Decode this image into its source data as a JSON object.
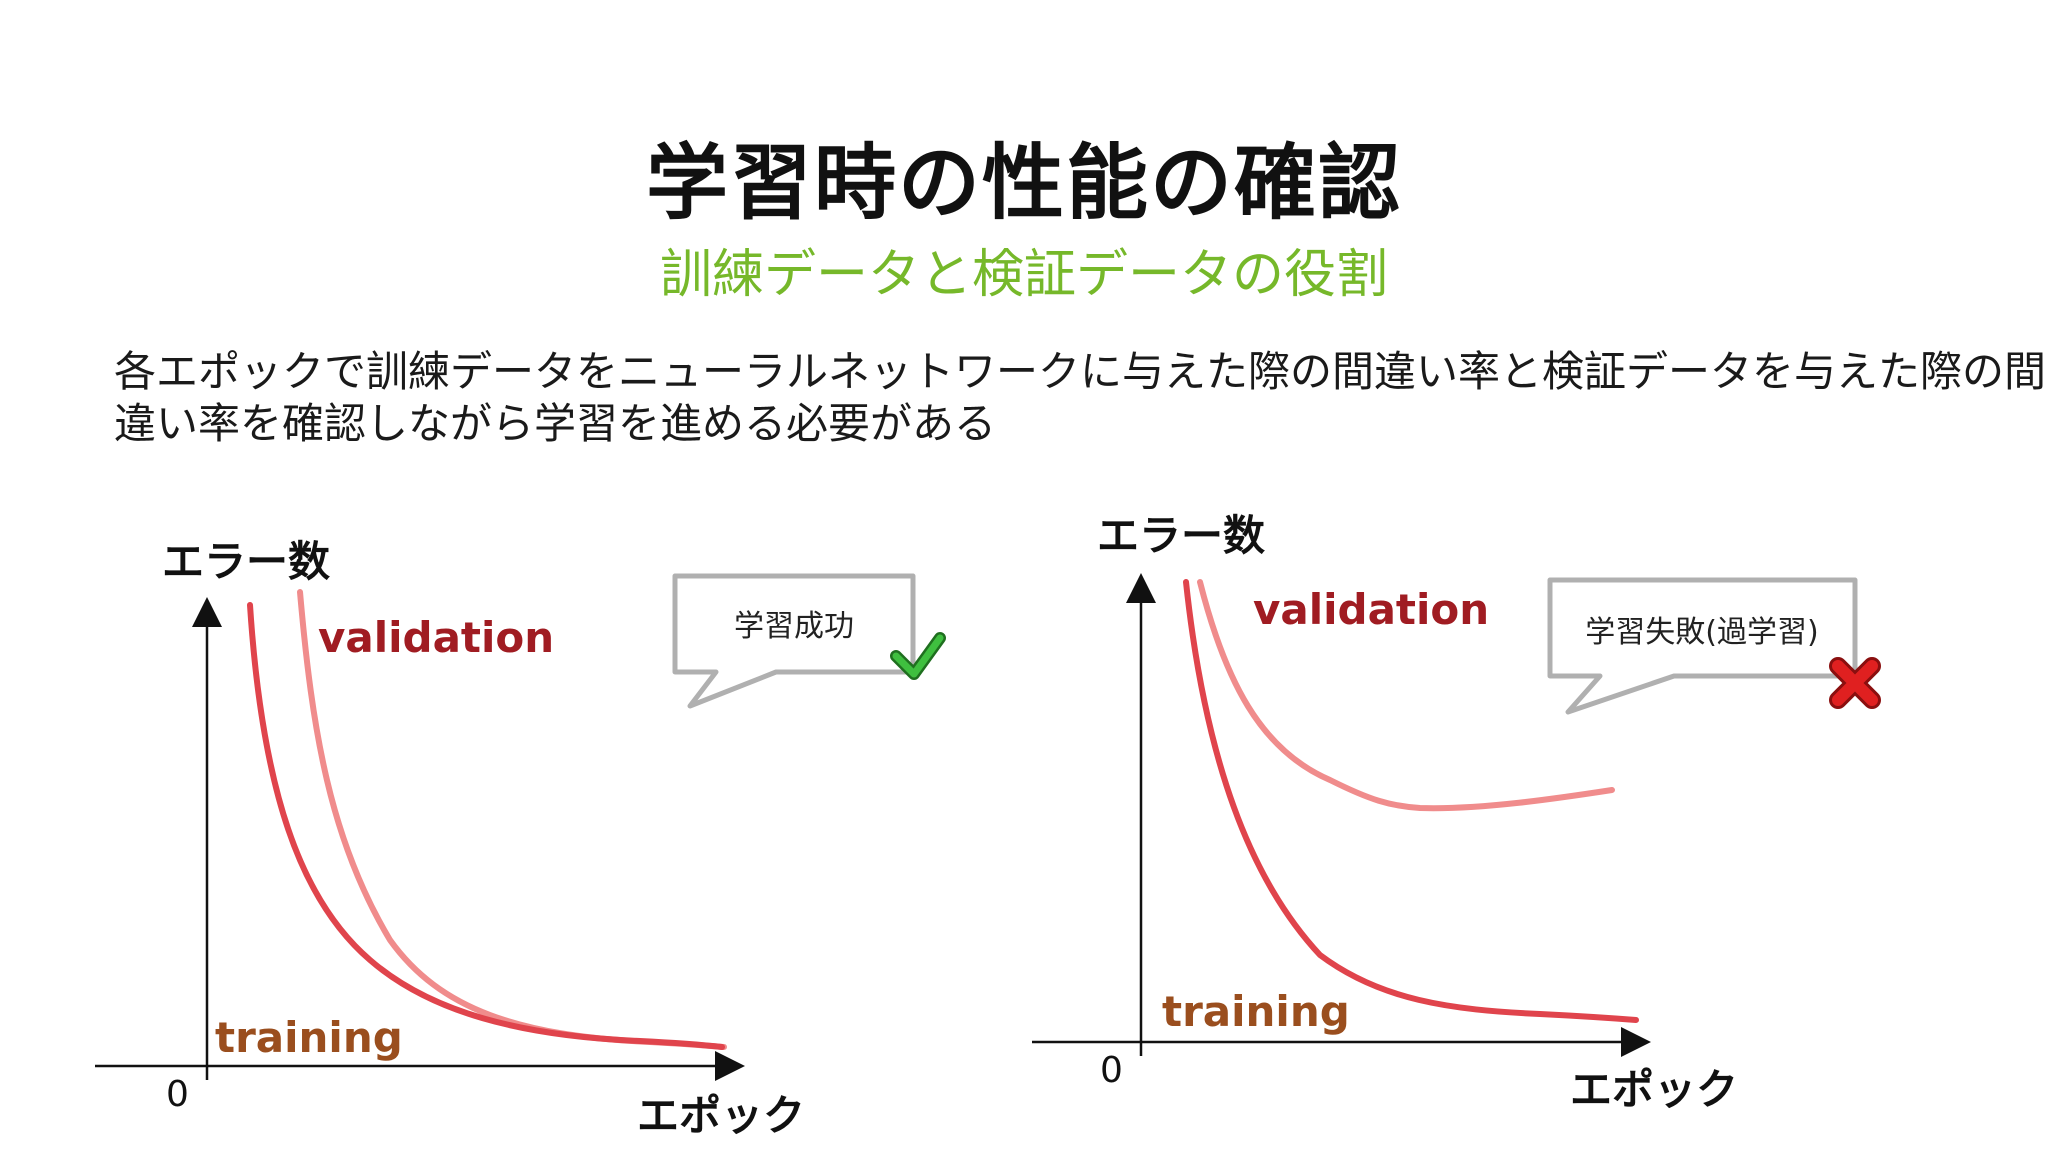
{
  "slide": {
    "title": "学習時の性能の確認",
    "subtitle": "訓練データと検証データの役割",
    "description_lines": [
      "各エポックで訓練データをニューラルネットワークに与えた際の間違い率と検証データを与えた際の間",
      "違い率を確認しながら学習を進める必要がある"
    ]
  },
  "colors": {
    "title": "#111111",
    "subtitle": "#76b82a",
    "training_line": "#e0444c",
    "validation_line": "#f08c8c",
    "validation_label": "#a01c22",
    "training_label": "#9a4e1e",
    "bubble_border": "#b0b0b0",
    "check": "#2e9e2e",
    "cross": "#e02020"
  },
  "chart_data": [
    {
      "type": "line",
      "y_axis_label": "エラー数",
      "x_axis_label": "エポック",
      "origin_label": "0",
      "series": [
        {
          "name": "validation",
          "role": "validation"
        },
        {
          "name": "training",
          "role": "training"
        }
      ],
      "bubble": {
        "text": "学習成功",
        "icon": "check-icon"
      }
    },
    {
      "type": "line",
      "y_axis_label": "エラー数",
      "x_axis_label": "エポック",
      "origin_label": "0",
      "series": [
        {
          "name": "validation",
          "role": "validation"
        },
        {
          "name": "training",
          "role": "training"
        }
      ],
      "bubble": {
        "text": "学習失敗(過学習)",
        "icon": "cross-icon"
      }
    }
  ]
}
